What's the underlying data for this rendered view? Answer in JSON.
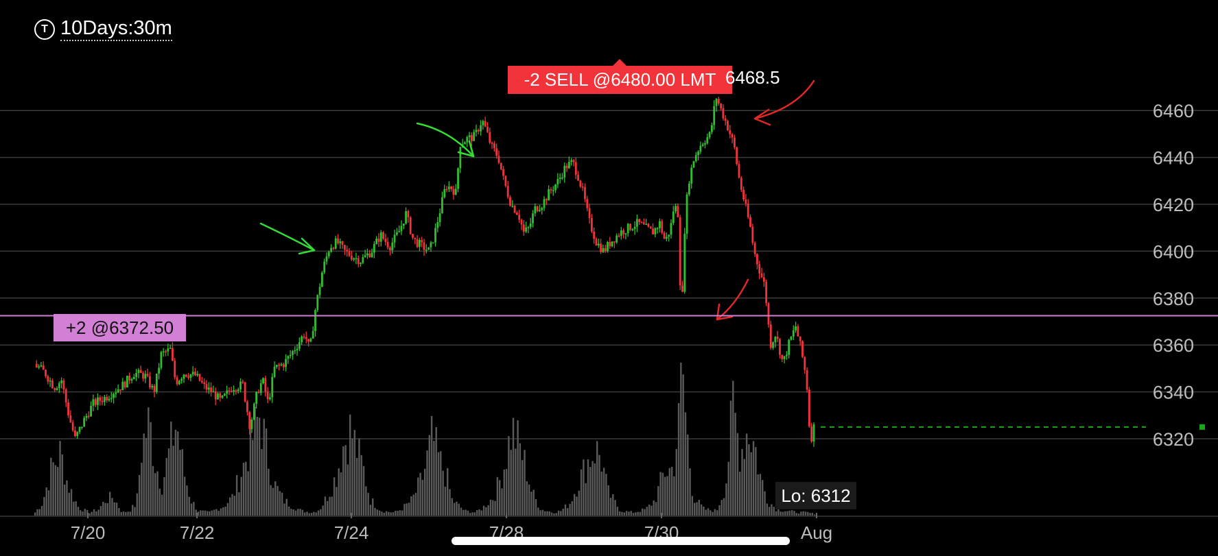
{
  "timeframe": {
    "icon": "t-circle-icon",
    "icon_glyph": "T",
    "label": "10Days:30m"
  },
  "order": {
    "label": "-2 SELL @6480.00 LMT"
  },
  "high": {
    "label": "6468.5"
  },
  "position": {
    "label": "+2 @6372.50",
    "price": 6372.5,
    "color": "#d27fd6"
  },
  "low": {
    "label": "Lo: 6312"
  },
  "colors": {
    "up": "#2fbf2f",
    "down": "#f2333a",
    "volume": "#5a5a5a",
    "grid": "#3c3c3c",
    "last": "#1ba81b"
  },
  "chart_data": {
    "type": "candlestick",
    "y_ticks": [
      "6460",
      "6440",
      "6420",
      "6400",
      "6380",
      "6360",
      "6340",
      "6320"
    ],
    "x_ticks": [
      "7/20",
      "7/22",
      "7/24",
      "7/28",
      "7/30",
      "Aug"
    ],
    "last_price": 6325,
    "high": 6468.5,
    "low": 6312,
    "price_path": [
      [
        0,
        6352
      ],
      [
        12,
        6348
      ],
      [
        22,
        6342
      ],
      [
        30,
        6345
      ],
      [
        38,
        6330
      ],
      [
        45,
        6320
      ],
      [
        55,
        6328
      ],
      [
        65,
        6335
      ],
      [
        80,
        6338
      ],
      [
        98,
        6343
      ],
      [
        110,
        6348
      ],
      [
        122,
        6347
      ],
      [
        132,
        6340
      ],
      [
        140,
        6356
      ],
      [
        150,
        6358
      ],
      [
        156,
        6344
      ],
      [
        165,
        6348
      ],
      [
        178,
        6347
      ],
      [
        188,
        6342
      ],
      [
        196,
        6340
      ],
      [
        206,
        6336
      ],
      [
        218,
        6342
      ],
      [
        230,
        6343
      ],
      [
        238,
        6325
      ],
      [
        246,
        6340
      ],
      [
        252,
        6345
      ],
      [
        258,
        6335
      ],
      [
        265,
        6350
      ],
      [
        275,
        6352
      ],
      [
        283,
        6356
      ],
      [
        290,
        6360
      ],
      [
        298,
        6365
      ],
      [
        304,
        6358
      ],
      [
        310,
        6375
      ],
      [
        318,
        6392
      ],
      [
        326,
        6402
      ],
      [
        334,
        6404
      ],
      [
        342,
        6400
      ],
      [
        350,
        6398
      ],
      [
        360,
        6396
      ],
      [
        372,
        6400
      ],
      [
        382,
        6407
      ],
      [
        392,
        6402
      ],
      [
        402,
        6408
      ],
      [
        410,
        6416
      ],
      [
        418,
        6405
      ],
      [
        428,
        6402
      ],
      [
        436,
        6400
      ],
      [
        442,
        6408
      ],
      [
        448,
        6418
      ],
      [
        454,
        6428
      ],
      [
        460,
        6427
      ],
      [
        465,
        6425
      ],
      [
        470,
        6446
      ],
      [
        478,
        6448
      ],
      [
        486,
        6449
      ],
      [
        494,
        6456
      ],
      [
        498,
        6452
      ],
      [
        504,
        6445
      ],
      [
        512,
        6440
      ],
      [
        518,
        6430
      ],
      [
        526,
        6420
      ],
      [
        534,
        6416
      ],
      [
        540,
        6408
      ],
      [
        546,
        6410
      ],
      [
        552,
        6418
      ],
      [
        560,
        6420
      ],
      [
        568,
        6425
      ],
      [
        578,
        6430
      ],
      [
        586,
        6436
      ],
      [
        594,
        6438
      ],
      [
        600,
        6432
      ],
      [
        606,
        6424
      ],
      [
        612,
        6413
      ],
      [
        620,
        6404
      ],
      [
        628,
        6400
      ],
      [
        636,
        6404
      ],
      [
        646,
        6408
      ],
      [
        656,
        6410
      ],
      [
        666,
        6412
      ],
      [
        674,
        6410
      ],
      [
        682,
        6408
      ],
      [
        690,
        6412
      ],
      [
        696,
        6404
      ],
      [
        702,
        6410
      ],
      [
        706,
        6420
      ],
      [
        710,
        6416
      ],
      [
        714,
        6370
      ],
      [
        718,
        6415
      ],
      [
        722,
        6430
      ],
      [
        728,
        6440
      ],
      [
        736,
        6446
      ],
      [
        746,
        6450
      ],
      [
        752,
        6466
      ],
      [
        760,
        6458
      ],
      [
        766,
        6452
      ],
      [
        772,
        6445
      ],
      [
        778,
        6430
      ],
      [
        784,
        6420
      ],
      [
        790,
        6410
      ],
      [
        794,
        6400
      ],
      [
        800,
        6392
      ],
      [
        806,
        6385
      ],
      [
        812,
        6360
      ],
      [
        818,
        6365
      ],
      [
        826,
        6352
      ],
      [
        832,
        6360
      ],
      [
        840,
        6368
      ],
      [
        846,
        6358
      ],
      [
        852,
        6345
      ],
      [
        855,
        6326
      ],
      [
        857,
        6320
      ],
      [
        860,
        6325
      ]
    ],
    "volume_profile": [
      [
        0,
        2
      ],
      [
        8,
        8
      ],
      [
        18,
        30
      ],
      [
        28,
        40
      ],
      [
        36,
        20
      ],
      [
        48,
        5
      ],
      [
        60,
        2
      ],
      [
        70,
        4
      ],
      [
        78,
        10
      ],
      [
        86,
        12
      ],
      [
        96,
        2
      ],
      [
        104,
        3
      ],
      [
        112,
        8
      ],
      [
        118,
        45
      ],
      [
        126,
        60
      ],
      [
        132,
        35
      ],
      [
        140,
        20
      ],
      [
        148,
        40
      ],
      [
        156,
        60
      ],
      [
        164,
        28
      ],
      [
        172,
        10
      ],
      [
        180,
        3
      ],
      [
        192,
        2
      ],
      [
        208,
        6
      ],
      [
        218,
        12
      ],
      [
        232,
        35
      ],
      [
        240,
        50
      ],
      [
        248,
        65
      ],
      [
        256,
        40
      ],
      [
        264,
        20
      ],
      [
        274,
        10
      ],
      [
        284,
        6
      ],
      [
        294,
        3
      ],
      [
        306,
        2
      ],
      [
        314,
        4
      ],
      [
        322,
        12
      ],
      [
        332,
        25
      ],
      [
        340,
        45
      ],
      [
        348,
        55
      ],
      [
        356,
        40
      ],
      [
        362,
        30
      ],
      [
        370,
        10
      ],
      [
        382,
        3
      ],
      [
        396,
        2
      ],
      [
        404,
        4
      ],
      [
        416,
        10
      ],
      [
        428,
        25
      ],
      [
        438,
        50
      ],
      [
        446,
        35
      ],
      [
        454,
        25
      ],
      [
        460,
        10
      ],
      [
        474,
        3
      ],
      [
        486,
        2
      ],
      [
        494,
        5
      ],
      [
        506,
        12
      ],
      [
        516,
        28
      ],
      [
        526,
        55
      ],
      [
        534,
        45
      ],
      [
        542,
        30
      ],
      [
        548,
        15
      ],
      [
        558,
        4
      ],
      [
        572,
        2
      ],
      [
        580,
        3
      ],
      [
        590,
        8
      ],
      [
        600,
        22
      ],
      [
        610,
        35
      ],
      [
        618,
        42
      ],
      [
        624,
        38
      ],
      [
        632,
        15
      ],
      [
        646,
        3
      ],
      [
        660,
        2
      ],
      [
        674,
        4
      ],
      [
        684,
        10
      ],
      [
        694,
        28
      ],
      [
        704,
        30
      ],
      [
        710,
        58
      ],
      [
        714,
        98
      ],
      [
        718,
        60
      ],
      [
        726,
        12
      ],
      [
        738,
        4
      ],
      [
        752,
        3
      ],
      [
        762,
        20
      ],
      [
        770,
        70
      ],
      [
        778,
        40
      ],
      [
        786,
        55
      ],
      [
        794,
        45
      ],
      [
        800,
        25
      ],
      [
        808,
        10
      ],
      [
        818,
        4
      ],
      [
        830,
        3
      ],
      [
        842,
        2
      ],
      [
        852,
        2
      ],
      [
        860,
        1
      ]
    ]
  }
}
